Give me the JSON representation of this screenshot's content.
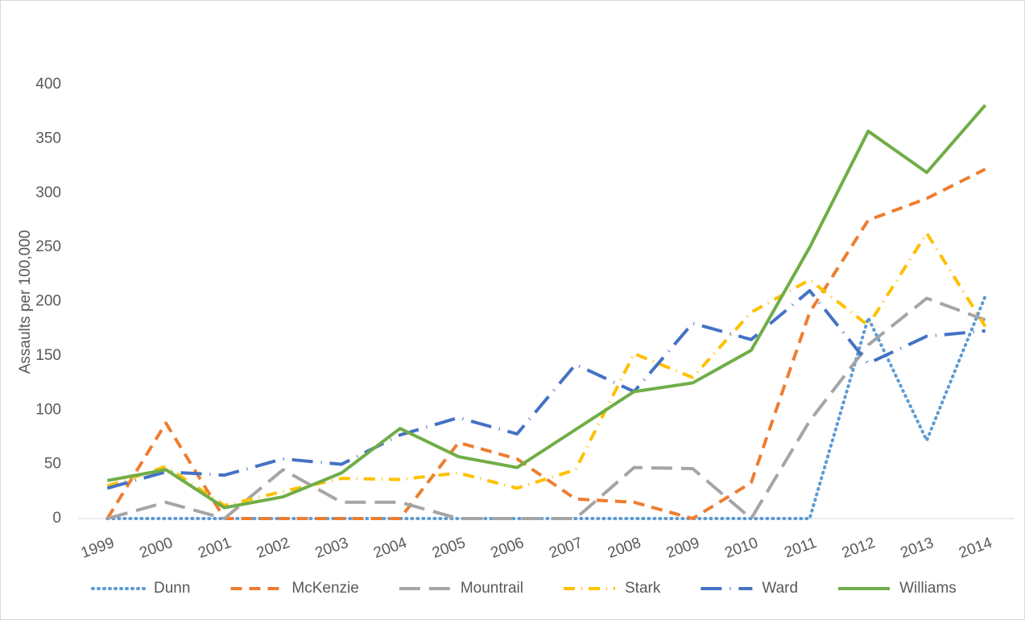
{
  "chart_data": {
    "type": "line",
    "y_label": "Assaults per 100,000",
    "categories": [
      "1999",
      "2000",
      "2001",
      "2002",
      "2003",
      "2004",
      "2005",
      "2006",
      "2007",
      "2008",
      "2009",
      "2010",
      "2011",
      "2012",
      "2013",
      "2014"
    ],
    "ylim": [
      0,
      400
    ],
    "yticks": [
      0,
      50,
      100,
      150,
      200,
      250,
      300,
      350,
      400
    ],
    "legend": "bottom",
    "series": [
      {
        "name": "Dunn",
        "color": "#5b9bd5",
        "dash": "dot",
        "values": [
          0,
          0,
          0,
          0,
          0,
          0,
          0,
          0,
          0,
          0,
          0,
          0,
          0,
          185,
          72,
          205
        ]
      },
      {
        "name": "McKenzie",
        "color": "#ed7d31",
        "dash": "dash",
        "values": [
          0,
          88,
          0,
          0,
          0,
          0,
          70,
          55,
          18,
          15,
          0,
          33,
          190,
          275,
          295,
          322
        ]
      },
      {
        "name": "Mountrail",
        "color": "#a5a5a5",
        "dash": "longdash",
        "values": [
          0,
          15,
          0,
          45,
          15,
          15,
          0,
          0,
          0,
          47,
          46,
          0,
          90,
          160,
          203,
          183
        ]
      },
      {
        "name": "Stark",
        "color": "#ffc000",
        "dash": "dashdot",
        "values": [
          30,
          48,
          12,
          25,
          37,
          36,
          42,
          28,
          45,
          152,
          130,
          190,
          220,
          178,
          263,
          177
        ]
      },
      {
        "name": "Ward",
        "color": "#4472c4",
        "dash": "longdashdot",
        "values": [
          28,
          43,
          40,
          55,
          50,
          77,
          93,
          78,
          142,
          117,
          180,
          165,
          210,
          143,
          168,
          173
        ]
      },
      {
        "name": "Williams",
        "color": "#70ad47",
        "dash": "solid",
        "values": [
          35,
          45,
          10,
          20,
          42,
          83,
          57,
          47,
          82,
          117,
          125,
          155,
          250,
          357,
          319,
          381
        ]
      }
    ]
  }
}
